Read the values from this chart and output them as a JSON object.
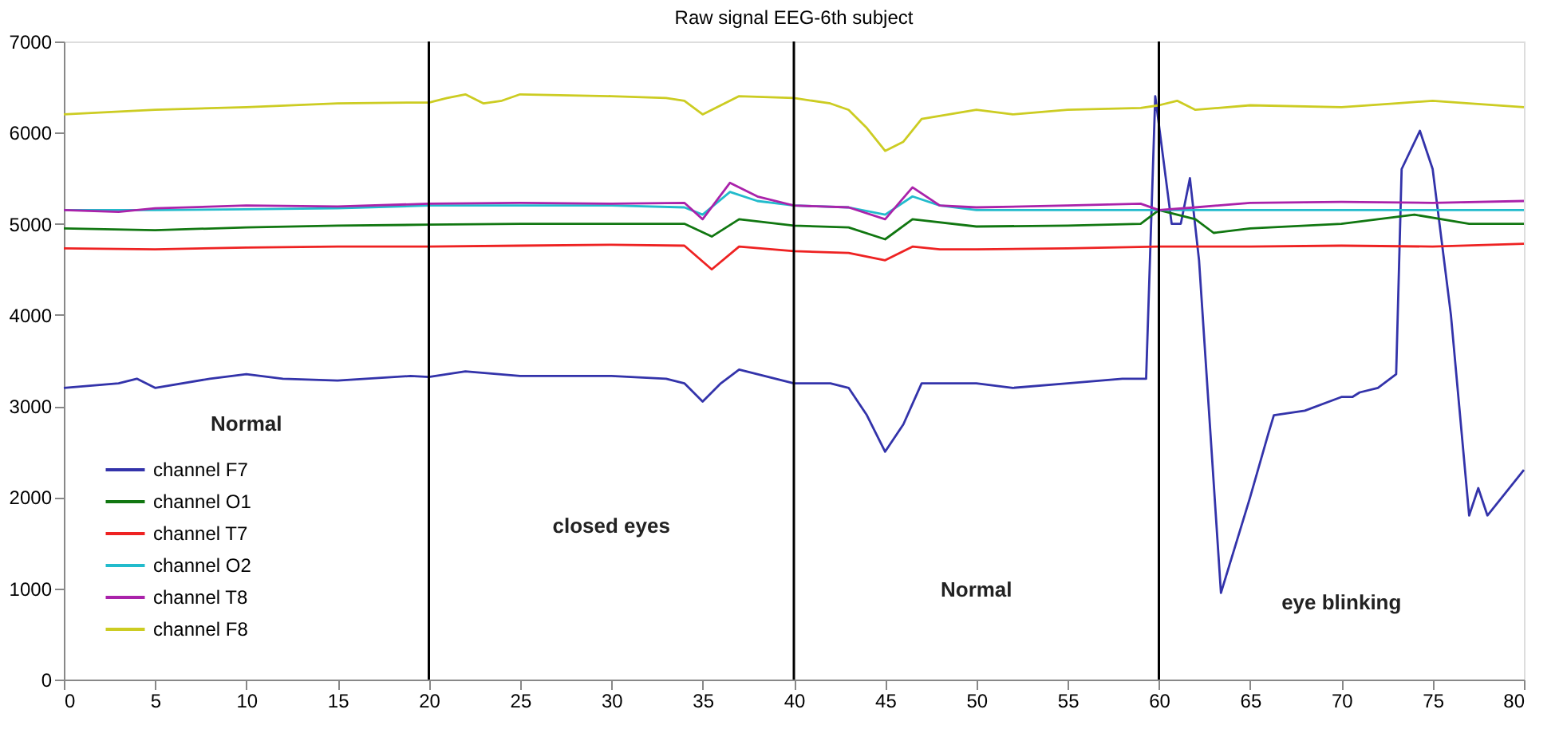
{
  "chart_data": {
    "type": "line",
    "title": "Raw signal EEG-6th subject",
    "xlim": [
      0,
      80
    ],
    "ylim": [
      0,
      7000
    ],
    "xticks": [
      0,
      5,
      10,
      15,
      20,
      25,
      30,
      35,
      40,
      45,
      50,
      55,
      60,
      65,
      70,
      75,
      80
    ],
    "yticks": [
      0,
      1000,
      2000,
      3000,
      4000,
      5000,
      6000,
      7000
    ],
    "grid": false,
    "legend": "bottom left",
    "marker": "none",
    "line_style": "solid",
    "ref_lines": [
      {
        "axis": "x",
        "value": 20,
        "color": "#000000"
      },
      {
        "axis": "x",
        "value": 40,
        "color": "#000000"
      },
      {
        "axis": "x",
        "value": 60,
        "color": "#000000"
      }
    ],
    "annotations": [
      "Normal",
      "closed eyes",
      "Normal",
      "eye blinking"
    ],
    "series": [
      {
        "name": "channel F7",
        "color": "#3333aa",
        "x": [
          0,
          3,
          4,
          5,
          8,
          10,
          12,
          15,
          19,
          20,
          22,
          25,
          30,
          33,
          34,
          35,
          36,
          37,
          38,
          40,
          42,
          43,
          44,
          45,
          46,
          47,
          50,
          52,
          55,
          58,
          59.3,
          59.8,
          60.7,
          61.2,
          61.7,
          62.2,
          63.4,
          65,
          66,
          66.3,
          68,
          70,
          70.6,
          71,
          72,
          73,
          73.3,
          74.3,
          75,
          76,
          77,
          77.5,
          78,
          80
        ],
        "values": [
          3200,
          3250,
          3300,
          3200,
          3300,
          3350,
          3300,
          3280,
          3330,
          3320,
          3380,
          3330,
          3330,
          3300,
          3250,
          3050,
          3250,
          3400,
          3350,
          3250,
          3250,
          3200,
          2900,
          2500,
          2800,
          3250,
          3250,
          3200,
          3250,
          3300,
          3300,
          6400,
          5000,
          5000,
          5500,
          4600,
          950,
          2000,
          2700,
          2900,
          2950,
          3100,
          3100,
          3150,
          3200,
          3350,
          5600,
          6020,
          5600,
          4000,
          1800,
          2100,
          1800,
          2300
        ]
      },
      {
        "name": "channel O1",
        "color": "#117711",
        "x": [
          0,
          5,
          10,
          15,
          20,
          25,
          30,
          34,
          35.5,
          37,
          40,
          43,
          45,
          46.5,
          50,
          55,
          59,
          60,
          62,
          63,
          65,
          70,
          74,
          77,
          80
        ],
        "values": [
          4950,
          4930,
          4960,
          4980,
          4990,
          5000,
          5000,
          5000,
          4860,
          5050,
          4980,
          4960,
          4830,
          5050,
          4970,
          4980,
          5000,
          5150,
          5050,
          4900,
          4950,
          5000,
          5100,
          5000,
          5000
        ]
      },
      {
        "name": "channel T7",
        "color": "#ee2222",
        "x": [
          0,
          5,
          10,
          15,
          20,
          25,
          30,
          34,
          35.5,
          37,
          40,
          43,
          45,
          46.5,
          48,
          50,
          55,
          60,
          65,
          70,
          75,
          80
        ],
        "values": [
          4730,
          4720,
          4740,
          4750,
          4750,
          4760,
          4770,
          4760,
          4500,
          4750,
          4700,
          4680,
          4600,
          4750,
          4720,
          4720,
          4730,
          4750,
          4750,
          4760,
          4750,
          4780
        ]
      },
      {
        "name": "channel O2",
        "color": "#22bbcc",
        "x": [
          0,
          5,
          10,
          15,
          20,
          25,
          30,
          34,
          35,
          36.5,
          38,
          40,
          43,
          45,
          46.5,
          48,
          50,
          55,
          60,
          65,
          70,
          75,
          80
        ],
        "values": [
          5150,
          5150,
          5160,
          5170,
          5200,
          5200,
          5200,
          5180,
          5100,
          5350,
          5250,
          5200,
          5180,
          5100,
          5300,
          5200,
          5150,
          5150,
          5150,
          5150,
          5150,
          5150,
          5150
        ]
      },
      {
        "name": "channel T8",
        "color": "#aa22aa",
        "x": [
          0,
          3,
          5,
          10,
          15,
          20,
          25,
          30,
          34,
          35,
          36.5,
          38,
          40,
          43,
          45,
          46.5,
          48,
          50,
          55,
          59,
          60,
          62,
          65,
          70,
          75,
          80
        ],
        "values": [
          5150,
          5130,
          5170,
          5200,
          5190,
          5220,
          5230,
          5220,
          5230,
          5050,
          5450,
          5300,
          5200,
          5180,
          5050,
          5400,
          5200,
          5180,
          5200,
          5220,
          5150,
          5180,
          5230,
          5240,
          5230,
          5250
        ]
      },
      {
        "name": "channel F8",
        "color": "#cccc22",
        "x": [
          0,
          5,
          10,
          15,
          19,
          20,
          21,
          22,
          23,
          24,
          25,
          30,
          33,
          34,
          35,
          36,
          37,
          40,
          42,
          43,
          44,
          45,
          46,
          47,
          50,
          52,
          55,
          59,
          60,
          61,
          62,
          65,
          70,
          73,
          75,
          77,
          80
        ],
        "values": [
          6200,
          6250,
          6280,
          6320,
          6330,
          6330,
          6380,
          6420,
          6320,
          6350,
          6420,
          6400,
          6380,
          6350,
          6200,
          6300,
          6400,
          6380,
          6320,
          6250,
          6050,
          5800,
          5900,
          6150,
          6250,
          6200,
          6250,
          6270,
          6300,
          6350,
          6250,
          6300,
          6280,
          6320,
          6350,
          6320,
          6280
        ]
      }
    ]
  }
}
